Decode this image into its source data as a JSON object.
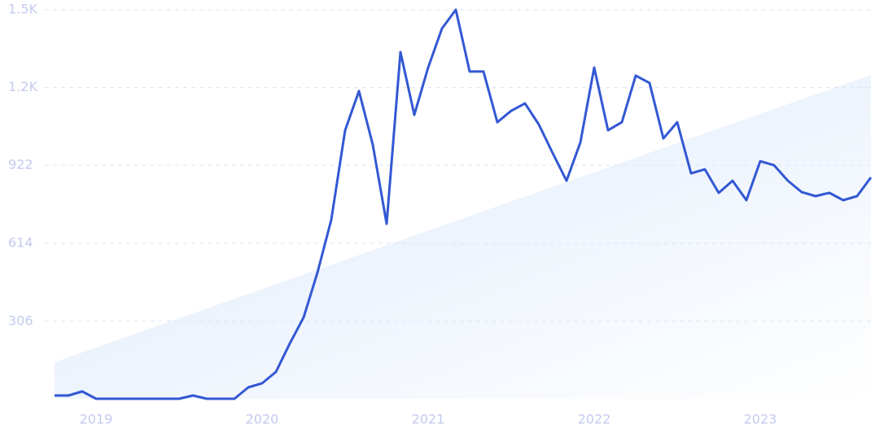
{
  "chart_data": {
    "type": "line",
    "color": "#3358d4",
    "x": [
      2018.75,
      2018.8333,
      2018.9167,
      2019.0,
      2019.0833,
      2019.1667,
      2019.25,
      2019.3333,
      2019.4167,
      2019.5,
      2019.5833,
      2019.6667,
      2019.75,
      2019.8333,
      2019.9167,
      2020.0,
      2020.0833,
      2020.1667,
      2020.25,
      2020.3333,
      2020.4167,
      2020.5,
      2020.5833,
      2020.6667,
      2020.75,
      2020.8333,
      2020.9167,
      2021.0,
      2021.0833,
      2021.1667,
      2021.25,
      2021.3333,
      2021.4167,
      2021.5,
      2021.5833,
      2021.6667,
      2021.75,
      2021.8333,
      2021.9167,
      2022.0,
      2022.0833,
      2022.1667,
      2022.25,
      2022.3333,
      2022.4167,
      2022.5,
      2022.5833,
      2022.6667,
      2022.75,
      2022.8333,
      2022.9167,
      2023.0,
      2023.0833,
      2023.1667,
      2023.25,
      2023.3333,
      2023.4167,
      2023.5,
      2023.5833,
      2023.6667
    ],
    "values": [
      13,
      13,
      29,
      0,
      0,
      0,
      0,
      0,
      0,
      0,
      13,
      0,
      0,
      0,
      45,
      61,
      106,
      218,
      321,
      498,
      707,
      1060,
      1215,
      1003,
      691,
      1369,
      1121,
      1308,
      1462,
      1536,
      1292,
      1292,
      1092,
      1137,
      1166,
      1083,
      970,
      861,
      1012,
      1308,
      1060,
      1092,
      1276,
      1247,
      1028,
      1092,
      890,
      906,
      813,
      861,
      784,
      938,
      922,
      861,
      816,
      800,
      813,
      784,
      800,
      874
    ],
    "xlim": [
      2018.75,
      2023.6667
    ],
    "xticks": [
      2019,
      2020,
      2021,
      2022,
      2023
    ],
    "ylim": [
      0,
      1536
    ],
    "yticks": [
      306,
      614,
      922,
      {
        "value": 1229,
        "label": "1.2K"
      },
      {
        "value": 1536,
        "label": "1.5K"
      }
    ],
    "grid": true
  }
}
